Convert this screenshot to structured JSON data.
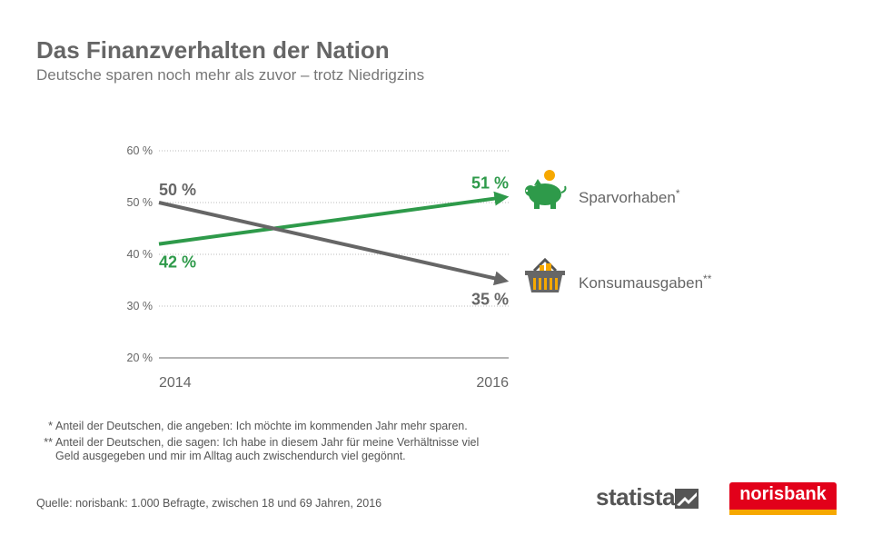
{
  "header": {
    "title": "Das Finanzverhalten der Nation",
    "subtitle": "Deutsche sparen noch mehr als zuvor – trotz Niedrigzins"
  },
  "chart_data": {
    "type": "line",
    "x": [
      "2014",
      "2016"
    ],
    "y_ticks": [
      "60 %",
      "50 %",
      "40 %",
      "30 %",
      "20 %"
    ],
    "ylim": [
      20,
      60
    ],
    "grid": true,
    "series": [
      {
        "name": "Sparvorhaben",
        "marker": "*",
        "values": [
          42,
          51
        ],
        "labels": [
          "42 %",
          "51 %"
        ],
        "color": "#2e9a4a",
        "icon": "piggy-bank-icon"
      },
      {
        "name": "Konsumausgaben",
        "marker": "**",
        "values": [
          50,
          35
        ],
        "labels": [
          "50 %",
          "35 %"
        ],
        "color": "#666666",
        "icon": "shopping-basket-icon"
      }
    ]
  },
  "footnotes": {
    "n1_mark": "*",
    "n1_text": "Anteil der Deutschen, die angeben: Ich möchte im kommenden Jahr mehr sparen.",
    "n2_mark": "**",
    "n2_line1": "Anteil der Deutschen, die sagen: Ich habe in diesem Jahr für meine Verhältnisse viel",
    "n2_line2": "Geld ausgegeben und mir im Alltag auch zwischendurch viel gegönnt."
  },
  "source": "Quelle: norisbank: 1.000 Befragte, zwischen 18 und 69 Jahren, 2016",
  "logos": {
    "statista": "statista",
    "norisbank": "norisbank"
  }
}
